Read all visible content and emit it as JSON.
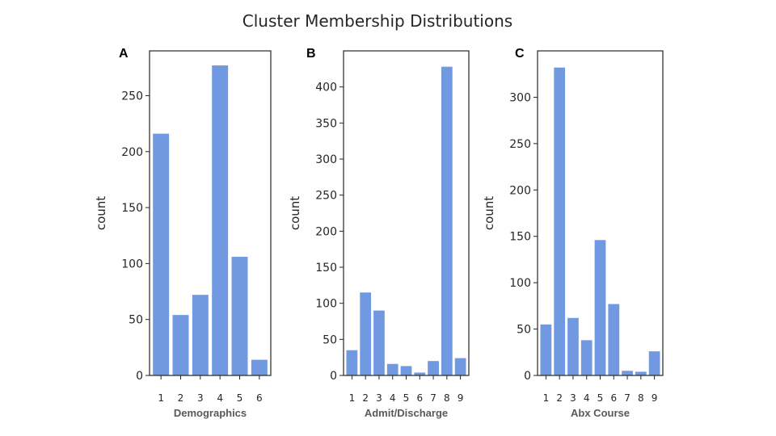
{
  "title": "Cluster Membership Distributions",
  "colors": {
    "bar": "#7199e1",
    "axis": "#262626"
  },
  "chart_data": [
    {
      "type": "bar",
      "panel": "A",
      "xlabel": "Demographics",
      "ylabel": "count",
      "categories": [
        "1",
        "2",
        "3",
        "4",
        "5",
        "6"
      ],
      "values": [
        216,
        54,
        72,
        277,
        106,
        14
      ],
      "yticks": [
        0,
        50,
        100,
        150,
        200,
        250
      ],
      "ylim": [
        0,
        290
      ]
    },
    {
      "type": "bar",
      "panel": "B",
      "xlabel": "Admit/Discharge",
      "ylabel": "count",
      "categories": [
        "1",
        "2",
        "3",
        "4",
        "5",
        "6",
        "7",
        "8",
        "9"
      ],
      "values": [
        35,
        115,
        90,
        16,
        13,
        4,
        20,
        428,
        24
      ],
      "yticks": [
        0,
        50,
        100,
        150,
        200,
        250,
        300,
        350,
        400
      ],
      "ylim": [
        0,
        450
      ]
    },
    {
      "type": "bar",
      "panel": "C",
      "xlabel": "Abx Course",
      "ylabel": "count",
      "categories": [
        "1",
        "2",
        "3",
        "4",
        "5",
        "6",
        "7",
        "8",
        "9"
      ],
      "values": [
        55,
        332,
        62,
        38,
        146,
        77,
        5,
        4,
        26
      ],
      "yticks": [
        0,
        50,
        100,
        150,
        200,
        250,
        300
      ],
      "ylim": [
        0,
        350
      ]
    }
  ]
}
